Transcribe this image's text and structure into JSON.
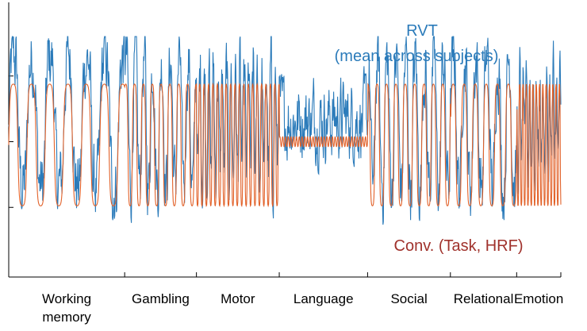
{
  "chart_data": {
    "type": "line",
    "title": "",
    "xlabel": "",
    "ylabel": "",
    "ylim": [
      -2,
      2
    ],
    "grid": false,
    "x_categories": [
      {
        "label": [
          "Working",
          "memory"
        ],
        "range": [
          0,
          2.1
        ]
      },
      {
        "label": [
          "Gambling"
        ],
        "range": [
          2.1,
          3.4
        ]
      },
      {
        "label": [
          "Motor"
        ],
        "range": [
          3.4,
          4.9
        ]
      },
      {
        "label": [
          "Language"
        ],
        "range": [
          4.9,
          6.5
        ]
      },
      {
        "label": [
          "Social"
        ],
        "range": [
          6.5,
          8.0
        ]
      },
      {
        "label": [
          "Relational"
        ],
        "range": [
          8.0,
          9.2
        ]
      },
      {
        "label": [
          "Emotion"
        ],
        "range": [
          9.2,
          10.0
        ]
      }
    ],
    "series": [
      {
        "name": "RVT (mean across subjects)",
        "label_lines": [
          "RVT",
          "(mean across subjects)"
        ],
        "color": "#2b7bba",
        "legend_position": "top-right",
        "description": "noisy blue trace; amplitude roughly -1.6 to 1.6"
      },
      {
        "name": "Conv. (Task, HRF)",
        "label_lines": [
          "Conv. (Task, HRF)"
        ],
        "color": "#e2622a",
        "text_color": "#a0322c",
        "legend_position": "bottom-right",
        "description": "smooth orange periodic trace; amplitude roughly -1 to 0.9"
      }
    ]
  }
}
